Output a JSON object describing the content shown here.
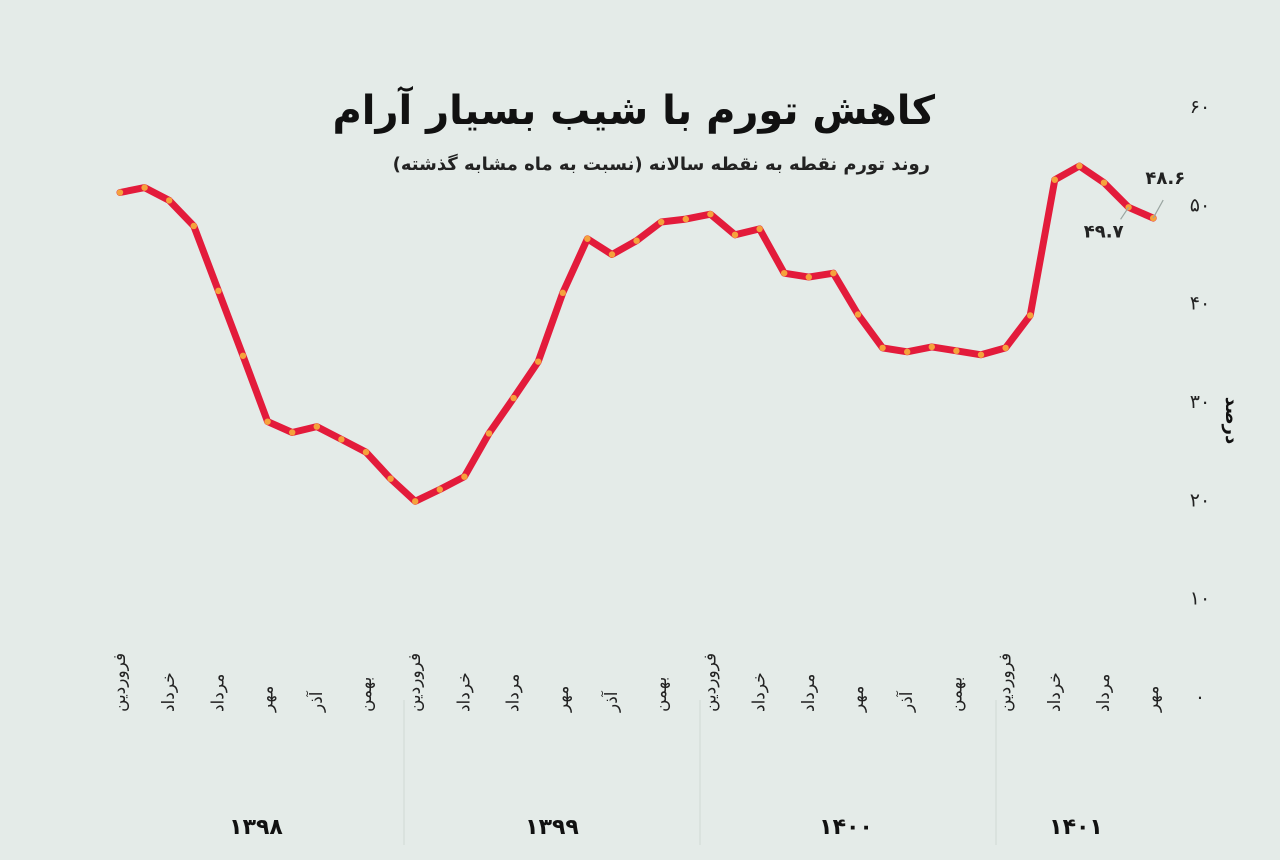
{
  "title": "کاهش تورم با شیب بسیار آرام",
  "subtitle": "روند تورم نقطه به نقطه سالانه (نسبت به ماه مشابه گذشته)",
  "colors": {
    "background": "#e4ebe8",
    "line": "#e31b3b",
    "marker": "#f5a23c",
    "divider": "#cfd8d4",
    "watermark": "#d3dcd8"
  },
  "chart_data": {
    "type": "line",
    "ylabel": "درصد",
    "ylim": [
      0,
      60
    ],
    "yticks": [
      "۰",
      "۱۰",
      "۲۰",
      "۳۰",
      "۴۰",
      "۵۰",
      "۶۰"
    ],
    "grid": false,
    "x_tick_labels": [
      "فروردین",
      "خرداد",
      "مرداد",
      "مهر",
      "آذر",
      "بهمن",
      "فروردین",
      "خرداد",
      "مرداد",
      "مهر",
      "آذر",
      "بهمن",
      "فروردین",
      "خرداد",
      "مرداد",
      "مهر",
      "آذر",
      "بهمن",
      "فروردین",
      "خرداد",
      "مرداد",
      "مهر"
    ],
    "year_labels": [
      "۱۳۹۸",
      "۱۳۹۹",
      "۱۴۰۰",
      "۱۴۰۱"
    ],
    "series": [
      {
        "values": [
          51.2,
          51.7,
          50.4,
          47.8,
          41.2,
          34.6,
          27.9,
          26.8,
          27.4,
          26.1,
          24.8,
          22.1,
          19.8,
          21.0,
          22.3,
          26.7,
          30.3,
          34.0,
          41.0,
          46.5,
          44.9,
          46.3,
          48.2,
          48.5,
          49.0,
          46.9,
          47.5,
          43.0,
          42.6,
          43.0,
          38.8,
          35.4,
          35.0,
          35.5,
          35.1,
          34.7,
          35.4,
          38.7,
          52.5,
          53.9,
          52.2,
          49.7,
          48.6
        ]
      }
    ],
    "annotations": [
      "۴۹.۷",
      "۴۸.۶"
    ]
  }
}
